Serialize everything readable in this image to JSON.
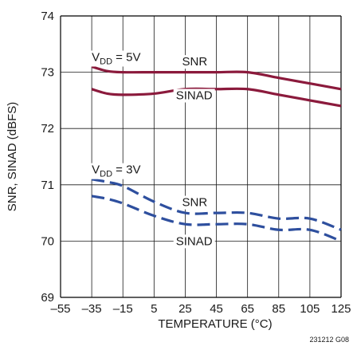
{
  "chart_data": {
    "type": "line",
    "title": "",
    "xlabel": "TEMPERATURE (°C)",
    "ylabel": "SNR, SINAD (dBFS)",
    "xlim": [
      -55,
      125
    ],
    "ylim": [
      69,
      74
    ],
    "xticks": [
      -55,
      -35,
      -15,
      5,
      25,
      45,
      65,
      85,
      105,
      125
    ],
    "xtick_labels": [
      "–55",
      "–35",
      "–15",
      "5",
      "25",
      "45",
      "65",
      "85",
      "105",
      "125"
    ],
    "yticks": [
      69,
      70,
      71,
      72,
      73,
      74
    ],
    "ytick_labels": [
      "69",
      "70",
      "71",
      "72",
      "73",
      "74"
    ],
    "grid": true,
    "series": [
      {
        "name": "SNR",
        "condition": "VDD = 5V",
        "style": "solid",
        "color": "#8b1a3c",
        "x": [
          -35,
          -25,
          -15,
          5,
          25,
          45,
          65,
          85,
          105,
          125
        ],
        "y": [
          73.1,
          73.02,
          73.0,
          73.0,
          73.0,
          73.0,
          73.0,
          72.9,
          72.8,
          72.7
        ]
      },
      {
        "name": "SINAD",
        "condition": "VDD = 5V",
        "style": "solid",
        "color": "#8b1a3c",
        "x": [
          -35,
          -25,
          -15,
          5,
          25,
          45,
          65,
          85,
          105,
          125
        ],
        "y": [
          72.7,
          72.62,
          72.6,
          72.62,
          72.7,
          72.7,
          72.7,
          72.6,
          72.5,
          72.4
        ]
      },
      {
        "name": "SNR",
        "condition": "VDD = 3V",
        "style": "dashed",
        "color": "#2e4f9e",
        "x": [
          -35,
          -25,
          -15,
          5,
          25,
          45,
          65,
          85,
          105,
          125
        ],
        "y": [
          71.1,
          71.05,
          70.98,
          70.7,
          70.5,
          70.5,
          70.5,
          70.4,
          70.4,
          70.2
        ]
      },
      {
        "name": "SINAD",
        "condition": "VDD = 3V",
        "style": "dashed",
        "color": "#2e4f9e",
        "x": [
          -35,
          -25,
          -15,
          5,
          25,
          45,
          65,
          85,
          105,
          125
        ],
        "y": [
          70.8,
          70.75,
          70.67,
          70.45,
          70.3,
          70.3,
          70.3,
          70.2,
          70.2,
          70.0
        ]
      }
    ],
    "annotations": [
      {
        "kind": "vdd",
        "main": "V",
        "sub": "DD",
        "rest": " = 5V",
        "x": -35,
        "y": 73.2
      },
      {
        "kind": "label",
        "text": "SNR",
        "x": 23,
        "y": 73.12
      },
      {
        "kind": "label",
        "text": "SINAD",
        "x": 19,
        "y": 72.52
      },
      {
        "kind": "vdd",
        "main": "V",
        "sub": "DD",
        "rest": " = 3V",
        "x": -35,
        "y": 71.2
      },
      {
        "kind": "label",
        "text": "SNR",
        "x": 23,
        "y": 70.62
      },
      {
        "kind": "label",
        "text": "SINAD",
        "x": 19,
        "y": 69.93
      }
    ],
    "figure_id": "231212 G08"
  }
}
